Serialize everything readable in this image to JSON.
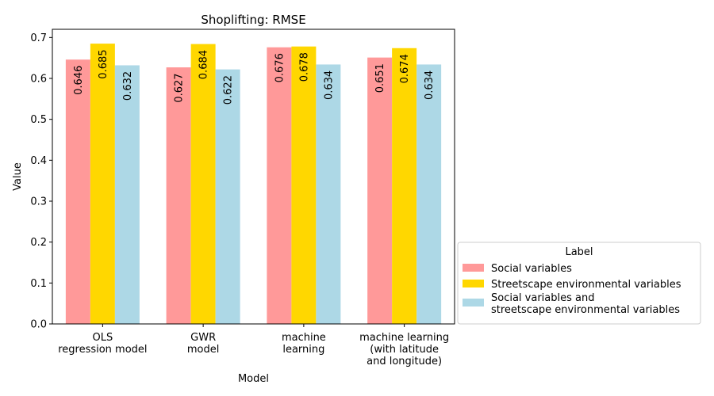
{
  "chart_data": {
    "type": "bar",
    "title": "Shoplifting: RMSE",
    "xlabel": "Model",
    "ylabel": "Value",
    "ylim": [
      0,
      0.72
    ],
    "yticks": [
      "0.0",
      "0.1",
      "0.2",
      "0.3",
      "0.4",
      "0.5",
      "0.6",
      "0.7"
    ],
    "categories": [
      [
        "OLS",
        "regression model"
      ],
      [
        "GWR",
        "model"
      ],
      [
        "machine",
        "learning"
      ],
      [
        "machine learning",
        "(with latitude",
        "and longitude)"
      ]
    ],
    "series": [
      {
        "name": "Social variables",
        "color": "#ff9999",
        "values": [
          0.646,
          0.627,
          0.676,
          0.651
        ],
        "labels": [
          "0.646",
          "0.627",
          "0.676",
          "0.651"
        ]
      },
      {
        "name": "Streetscape environmental variables",
        "color": "#ffd700",
        "values": [
          0.685,
          0.684,
          0.678,
          0.674
        ],
        "labels": [
          "0.685",
          "0.684",
          "0.678",
          "0.674"
        ]
      },
      {
        "name": "Social variables and\nstreetscape environmental variables",
        "color": "#add8e6",
        "values": [
          0.632,
          0.622,
          0.634,
          0.634
        ],
        "labels": [
          "0.632",
          "0.622",
          "0.634",
          "0.634"
        ]
      }
    ],
    "legend": {
      "title": "Label",
      "placement": "right-bottom, outside plot"
    },
    "grid": false
  }
}
